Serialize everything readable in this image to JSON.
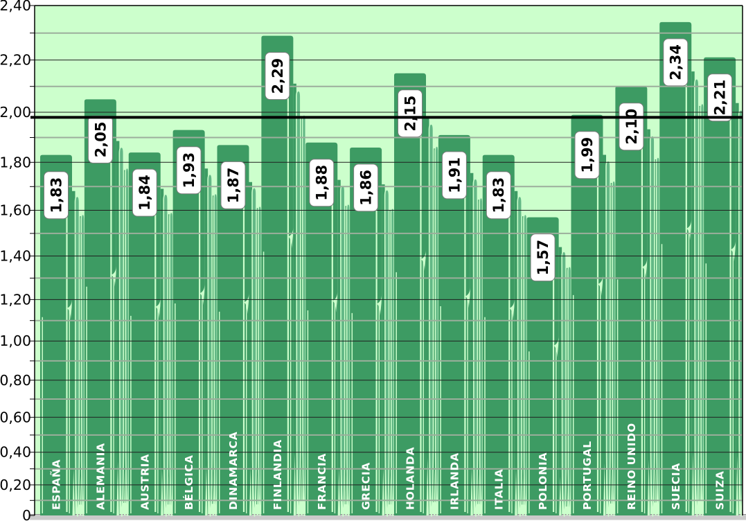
{
  "chart_data": {
    "type": "bar",
    "title": "",
    "xlabel": "",
    "ylabel": "",
    "categories": [
      "ESPAÑA",
      "ALEMANIA",
      "AUSTRIA",
      "BÉLGICA",
      "DINAMARCA",
      "FINLANDIA",
      "FRANCIA",
      "GRECIA",
      "HOLANDA",
      "IRLANDA",
      "ITALIA",
      "POLONIA",
      "PORTUGAL",
      "REINO UNIDO",
      "SUECIA",
      "SUIZA"
    ],
    "values": [
      1.83,
      2.05,
      1.84,
      1.93,
      1.87,
      2.29,
      1.88,
      1.86,
      2.15,
      1.91,
      1.83,
      1.57,
      1.99,
      2.1,
      2.34,
      2.21
    ],
    "value_labels": [
      "1,83",
      "2,05",
      "1,84",
      "1,93",
      "1,87",
      "2,29",
      "1,88",
      "1,86",
      "2,15",
      "1,91",
      "1,83",
      "1,57",
      "1,99",
      "2,10",
      "2,34",
      "2,21"
    ],
    "y_axis": {
      "min": 0,
      "max": 2.4,
      "grid_step": 0.1,
      "label_step": 0.2,
      "tick_labels_top_to_bottom": [
        "2,40",
        "2,20",
        "2,00",
        "1,80",
        "1,60",
        "1,40",
        "1,20",
        "1,00",
        "0,80",
        "0,60",
        "0,40",
        "0,20",
        "0"
      ]
    },
    "reference_line": {
      "value": 1.98
    },
    "grid": true,
    "legend": false,
    "layout_hints": {
      "perspective_axis": true,
      "bar_style": "stretched-cylinder-picture",
      "data_labels": "rotated-white-boxes",
      "category_labels": "rotated-inside-bars"
    },
    "colors": {
      "page_bg": "#ffffff",
      "plot_bg": "#ccffcc",
      "bar_body": "#3d9b63",
      "bar_blade": "#63b886",
      "bar_highlight": "#ccffcc",
      "grid_major": "#1f1f1f",
      "grid_minor": "#9cae9c",
      "reference_line": "#000000",
      "border": "#000000",
      "floor": "#cacaca",
      "floor_edge": "#8e8e8e",
      "box_bg": "#ffffff",
      "box_border": "#7a7a7a",
      "box_text": "#000000",
      "category_text": "#ffffff",
      "axis_text": "#000000"
    }
  }
}
